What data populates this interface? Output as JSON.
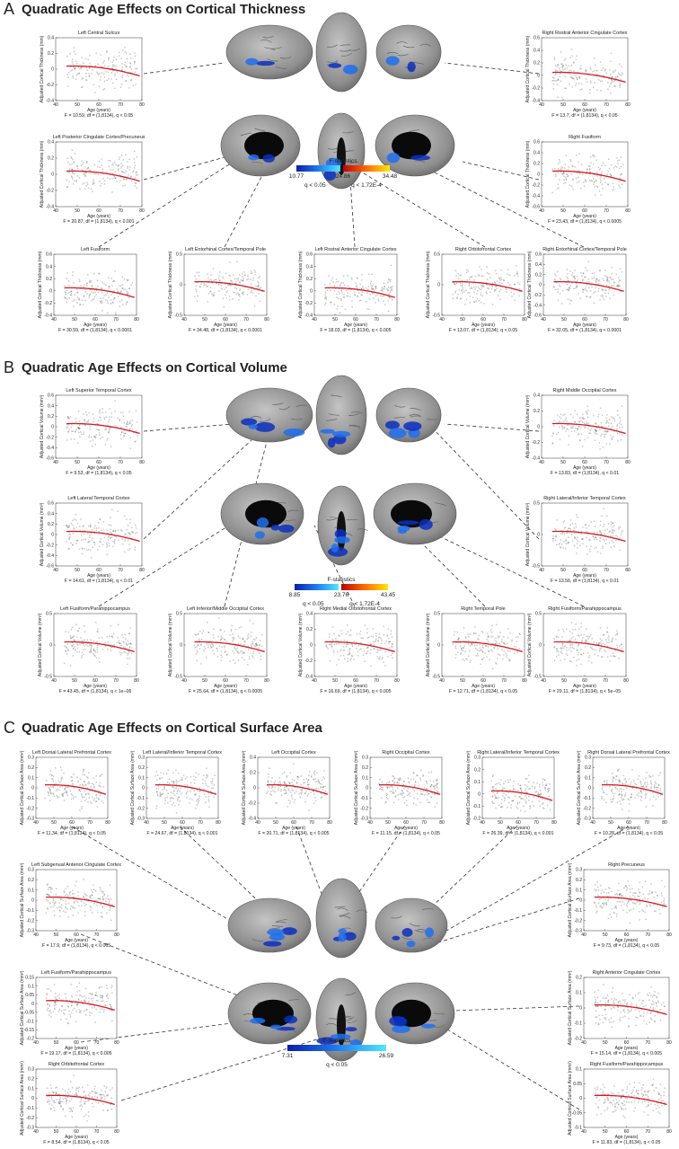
{
  "panels": [
    {
      "label": "A",
      "title": "Quadratic Age Effects on Cortical Thickness",
      "colorbar": {
        "title": "F-statistics",
        "ticks": [
          "10.77",
          "24.86",
          "34.48"
        ],
        "notes": [
          "q < 0.05",
          "q < 1.72E-4"
        ]
      },
      "plots": [
        {
          "title": "Left Central Sulcus",
          "ylabel": "Adjusted Cortical Thickness (mm)",
          "xlabel": "Age (years)",
          "stat": "F = 10.59, df = (1,8134), q < 0.05",
          "xticks": [
            40,
            50,
            60,
            70,
            80
          ],
          "yticks": [
            -0.4,
            -0.2,
            0,
            0.2,
            0.4
          ]
        },
        {
          "title": "Right Rostral Anterior Cingulate Cortex",
          "ylabel": "Adjusted Cortical Thickness (mm)",
          "xlabel": "Age (years)",
          "stat": "F = 13.7, df = (1,8134), q < 0.05",
          "xticks": [
            40,
            50,
            60,
            70,
            80
          ],
          "yticks": [
            -0.4,
            -0.2,
            0,
            0.2,
            0.4,
            0.6
          ]
        },
        {
          "title": "Left Posterior Cingulate Cortex/Precuneus",
          "ylabel": "Adjusted Cortical Thickness (mm)",
          "xlabel": "Age (years)",
          "stat": "F = 20.87, df = (1,8134), q < 0.001",
          "xticks": [
            40,
            50,
            60,
            70,
            80
          ],
          "yticks": [
            -0.4,
            -0.2,
            0,
            0.2,
            0.4
          ]
        },
        {
          "title": "Right Fusiform",
          "ylabel": "Adjusted Cortical Thickness (mm)",
          "xlabel": "Age (years)",
          "stat": "F = 23.43, df = (1,8134), q < 0.0005",
          "xticks": [
            40,
            50,
            60,
            70,
            80
          ],
          "yticks": [
            -0.6,
            -0.4,
            -0.2,
            0,
            0.2,
            0.4,
            0.6
          ]
        },
        {
          "title": "Left Fusiform",
          "ylabel": "Adjusted Cortical Thickness (mm)",
          "xlabel": "Age (years)",
          "stat": "F = 30.59, df = (1,8134), q < 0.0001",
          "xticks": [
            40,
            50,
            60,
            70,
            80
          ],
          "yticks": [
            -0.4,
            -0.2,
            0,
            0.2,
            0.4,
            0.6
          ]
        },
        {
          "title": "Left Entorhinal Cortex/Temporal Pole",
          "ylabel": "Adjusted Cortical Thickness (mm)",
          "xlabel": "Age (years)",
          "stat": "F = 34.48, df = (1,8134), q < 0.0001",
          "xticks": [
            40,
            50,
            60,
            70,
            80
          ],
          "yticks": [
            -0.5,
            0,
            0.5
          ]
        },
        {
          "title": "Left Rostral Anterior Cingulate Cortex",
          "ylabel": "Adjusted Cortical Thickness (mm)",
          "xlabel": "Age (years)",
          "stat": "F = 18.03, df = (1,8134), q < 0.005",
          "xticks": [
            40,
            50,
            60,
            70,
            80
          ],
          "yticks": [
            -0.4,
            -0.2,
            0,
            0.2,
            0.4,
            0.6
          ]
        },
        {
          "title": "Right Orbitofrontal Cortex",
          "ylabel": "Adjusted Cortical Thickness (mm)",
          "xlabel": "Age (years)",
          "stat": "F = 13.07, df = (1,8134), q < 0.05",
          "xticks": [
            40,
            50,
            60,
            70,
            80
          ],
          "yticks": [
            -0.5,
            0,
            0.5
          ]
        },
        {
          "title": "Right Entorhinal Cortex/Temporal Pole",
          "ylabel": "Adjusted Cortical Thickness (mm)",
          "xlabel": "Age (years)",
          "stat": "F = 32.05, df = (1,8134), q < 0.0001",
          "xticks": [
            40,
            50,
            60,
            70,
            80
          ],
          "yticks": [
            -0.6,
            -0.4,
            -0.2,
            0,
            0.2,
            0.4,
            0.6
          ]
        }
      ]
    },
    {
      "label": "B",
      "title": "Quadratic Age Effects on Cortical Volume",
      "colorbar": {
        "title": "F-statistics",
        "ticks": [
          "8.85",
          "23.76",
          "43.45"
        ],
        "notes": [
          "q < 0.05",
          "q < 1.72E-4"
        ]
      },
      "plots": [
        {
          "title": "Left Superior Temporal Cortex",
          "ylabel": "Adjusted Cortical Volume (mm³)",
          "xlabel": "Age (years)",
          "stat": "F = 9.53, df = (1,8134), q < 0.05",
          "xticks": [
            40,
            50,
            60,
            70,
            80
          ],
          "yticks": [
            -0.6,
            -0.4,
            -0.2,
            0,
            0.2,
            0.4,
            0.6
          ]
        },
        {
          "title": "Right Middle Occipital Cortex",
          "ylabel": "Adjusted Cortical Volume (mm³)",
          "xlabel": "Age (years)",
          "stat": "F = 13.83, df = (1,8134), q < 0.01",
          "xticks": [
            40,
            50,
            60,
            70,
            80
          ],
          "yticks": [
            -0.4,
            -0.2,
            0,
            0.2,
            0.4
          ]
        },
        {
          "title": "Left Lateral Temporal Cortex",
          "ylabel": "Adjusted Cortical Volume (mm³)",
          "xlabel": "Age (years)",
          "stat": "F = 14.61, df = (1,8134), q < 0.01",
          "xticks": [
            40,
            50,
            60,
            70,
            80
          ],
          "yticks": [
            -0.6,
            -0.4,
            -0.2,
            0,
            0.2,
            0.4,
            0.6
          ]
        },
        {
          "title": "Right Lateral/Inferior Temporal Cortex",
          "ylabel": "Adjusted Cortical Volume (mm³)",
          "xlabel": "Age (years)",
          "stat": "F = 13.56, df = (1,8134), q < 0.01",
          "xticks": [
            40,
            50,
            60,
            70,
            80
          ],
          "yticks": [
            -0.5,
            0,
            0.5
          ]
        },
        {
          "title": "Left Fusiform/Parahippocampus",
          "ylabel": "Adjusted Cortical Volume (mm³)",
          "xlabel": "Age (years)",
          "stat": "F = 43.45, df = (1,8134), q < 1e−06",
          "xticks": [
            40,
            50,
            60,
            70,
            80
          ],
          "yticks": [
            -0.5,
            0,
            0.5
          ]
        },
        {
          "title": "Left Inferior/Middle Occipital Cortex",
          "ylabel": "Adjusted Cortical Volume (mm³)",
          "xlabel": "Age (years)",
          "stat": "F = 25.64, df = (1,8134), q < 0.0005",
          "xticks": [
            40,
            50,
            60,
            70,
            80
          ],
          "yticks": [
            -0.5,
            0,
            0.5
          ]
        },
        {
          "title": "Right Medial Orbitofrontal Cortex",
          "ylabel": "Adjusted Cortical Volume (mm³)",
          "xlabel": "Age (years)",
          "stat": "F = 16.69, df = (1,8134), q < 0.005",
          "xticks": [
            40,
            50,
            60,
            70,
            80
          ],
          "yticks": [
            -0.4,
            -0.2,
            0,
            0.2,
            0.4
          ]
        },
        {
          "title": "Right Temporal Pole",
          "ylabel": "Adjusted Cortical Volume (mm³)",
          "xlabel": "Age (years)",
          "stat": "F = 12.71, df = (1,8134), q < 0.05",
          "xticks": [
            40,
            50,
            60,
            70,
            80
          ],
          "yticks": [
            -0.5,
            0,
            0.5
          ]
        },
        {
          "title": "Right Fusiform/Parahippocampus",
          "ylabel": "Adjusted Cortical Volume (mm³)",
          "xlabel": "Age (years)",
          "stat": "F = 29.11, df = (1,8134), q < 5e−05",
          "xticks": [
            40,
            50,
            60,
            70,
            80
          ],
          "yticks": [
            -0.5,
            0,
            0.5
          ]
        }
      ]
    },
    {
      "label": "C",
      "title": "Quadratic Age Effects on Cortical Surface Area",
      "colorbar": {
        "title": "F-statistics",
        "ticks": [
          "7.31",
          "26.59"
        ],
        "notes": [
          "q < 0.05"
        ]
      },
      "plots": [
        {
          "title": "Left Dorsal Lateral Prefrontal Cortex",
          "ylabel": "Adjusted Cortical Surface Area (mm²)",
          "xlabel": "Age (years)",
          "stat": "F = 11.34, df = (1,8134), q < 0.05",
          "xticks": [
            40,
            50,
            60,
            70,
            80
          ],
          "yticks": [
            -0.3,
            -0.2,
            -0.1,
            0,
            0.1,
            0.2,
            0.3
          ]
        },
        {
          "title": "Left Lateral/Inferior Temporal Cortex",
          "ylabel": "Adjusted Cortical Surface Area (mm²)",
          "xlabel": "Age (years)",
          "stat": "F = 24.67, df = (1,8134), q < 0.001",
          "xticks": [
            40,
            50,
            60,
            70,
            80
          ],
          "yticks": [
            -0.3,
            -0.2,
            -0.1,
            0,
            0.1,
            0.2,
            0.3
          ]
        },
        {
          "title": "Left Occipital Cortex",
          "ylabel": "Adjusted Cortical Surface Area (mm²)",
          "xlabel": "Age (years)",
          "stat": "F = 20.71, df = (1,8134), q < 0.005",
          "xticks": [
            40,
            50,
            60,
            70,
            80
          ],
          "yticks": [
            -0.4,
            -0.2,
            0,
            0.2,
            0.4
          ]
        },
        {
          "title": "Right Occipital Cortex",
          "ylabel": "Adjusted Cortical Surface Area (mm²)",
          "xlabel": "Age (years)",
          "stat": "F = 11.15, df = (1,8134), q < 0.05",
          "xticks": [
            40,
            50,
            60,
            70,
            80
          ],
          "yticks": [
            -0.3,
            -0.2,
            -0.1,
            0,
            0.1,
            0.2,
            0.3
          ]
        },
        {
          "title": "Right Lateral/Inferior Temporal Cortex",
          "ylabel": "Adjusted Cortical Surface Area (mm²)",
          "xlabel": "Age (years)",
          "stat": "F = 26.39, df = (1,8134), q < 0.001",
          "xticks": [
            40,
            50,
            60,
            70,
            80
          ],
          "yticks": [
            -0.2,
            -0.1,
            0,
            0.1,
            0.2,
            0.3
          ]
        },
        {
          "title": "Right Dorsal Lateral Prefrontal Cortex",
          "ylabel": "Adjusted Cortical Surface Area (mm²)",
          "xlabel": "Age (years)",
          "stat": "F = 10.28, df = (1,8134), q < 0.05",
          "xticks": [
            40,
            50,
            60,
            70,
            80
          ],
          "yticks": [
            -0.3,
            -0.2,
            -0.1,
            0,
            0.1,
            0.2,
            0.3
          ]
        },
        {
          "title": "Left Subgenual Anterior Cingulate Cortex",
          "ylabel": "Adjusted Cortical Surface Area (mm²)",
          "xlabel": "Age (years)",
          "stat": "F = 17.9, df = (1,8134), q < 0.005",
          "xticks": [
            40,
            50,
            60,
            70,
            80
          ],
          "yticks": [
            -0.3,
            -0.2,
            -0.1,
            0,
            0.1,
            0.2,
            0.3
          ]
        },
        {
          "title": "Right Precuneus",
          "ylabel": "Adjusted Cortical Surface Area (mm²)",
          "xlabel": "Age (years)",
          "stat": "F = 9.73, df = (1,8134), q < 0.05",
          "xticks": [
            40,
            50,
            60,
            70,
            80
          ],
          "yticks": [
            -0.3,
            -0.2,
            -0.1,
            0,
            0.1,
            0.2,
            0.3
          ]
        },
        {
          "title": "Left Fusiform/Parahippocampus",
          "ylabel": "Adjusted Cortical Surface Area (mm²)",
          "xlabel": "Age (years)",
          "stat": "F = 19.17, df = (1,8134), q < 0.005",
          "xticks": [
            40,
            50,
            60,
            70,
            80
          ],
          "yticks": [
            -0.2,
            -0.15,
            -0.1,
            -0.05,
            0,
            0.05,
            0.1,
            0.15
          ]
        },
        {
          "title": "Right Anterior Cingulate Cortex",
          "ylabel": "Adjusted Cortical Surface Area (mm²)",
          "xlabel": "Age (years)",
          "stat": "F = 15.14, df = (1,8134), q < 0.005",
          "xticks": [
            40,
            50,
            60,
            70,
            80
          ],
          "yticks": [
            -0.2,
            -0.1,
            0,
            0.1,
            0.2
          ]
        },
        {
          "title": "Right Orbitofrontal Cortex",
          "ylabel": "Adjusted Cortical Surface Area (mm²)",
          "xlabel": "Age (years)",
          "stat": "F = 8.54, df = (1,8134), q < 0.05",
          "xticks": [
            40,
            50,
            60,
            70,
            80
          ],
          "yticks": [
            -0.3,
            -0.2,
            -0.1,
            0,
            0.1,
            0.2,
            0.3
          ]
        },
        {
          "title": "Right Fusiform/Parahippocampus",
          "ylabel": "Adjusted Cortical Surface Area (mm²)",
          "xlabel": "Age (years)",
          "stat": "F = 11.83, df = (1,8134), q < 0.05",
          "xticks": [
            40,
            50,
            60,
            70,
            80
          ],
          "yticks": [
            -0.1,
            -0.05,
            0,
            0.05,
            0.1
          ]
        }
      ]
    }
  ]
}
